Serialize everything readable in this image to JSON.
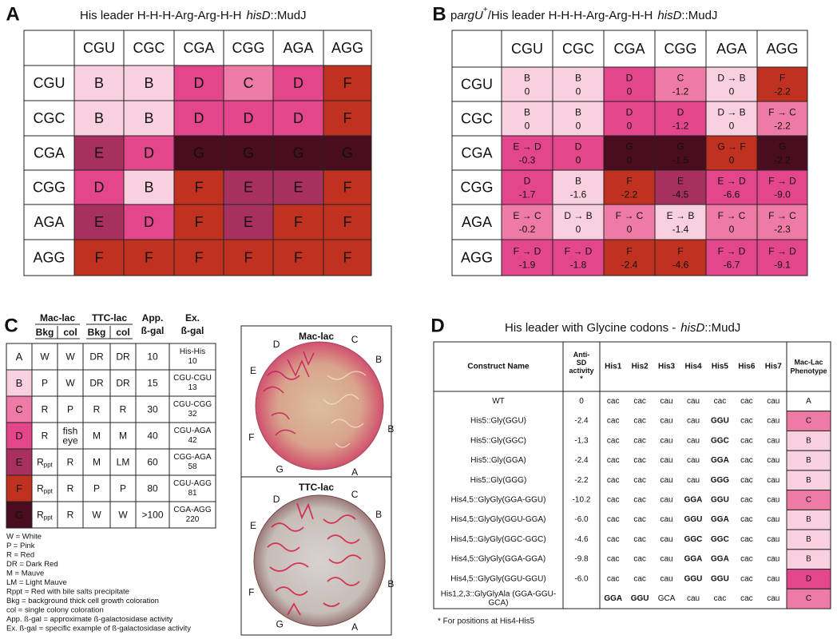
{
  "phenotype_colors": {
    "A": {
      "fill": "#ffffff",
      "text": "#111111"
    },
    "B": {
      "fill": "#f9d0df",
      "text": "#111111"
    },
    "C": {
      "fill": "#ee7aa6",
      "text": "#111111"
    },
    "D": {
      "fill": "#e4468b",
      "text": "#ffffff"
    },
    "E": {
      "fill": "#a8305f",
      "text": "#ffffff"
    },
    "F": {
      "fill": "#c0321f",
      "text": "#ffffff"
    },
    "G": {
      "fill": "#4a0d20",
      "text": "#ffffff"
    }
  },
  "panel_a": {
    "label": "A",
    "title": {
      "prefix": "His leader H-H-H-Arg-Arg-H-H",
      "gene": "hisD",
      "suffix": "::MudJ"
    },
    "columns": [
      "CGU",
      "CGC",
      "CGA",
      "CGG",
      "AGA",
      "AGG"
    ],
    "rows": [
      {
        "codon": "CGU",
        "cells": [
          "B",
          "B",
          "D",
          "C",
          "D",
          "F"
        ]
      },
      {
        "codon": "CGC",
        "cells": [
          "B",
          "B",
          "D",
          "D",
          "D",
          "F"
        ]
      },
      {
        "codon": "CGA",
        "cells": [
          "E",
          "D",
          "G",
          "G",
          "G",
          "G"
        ]
      },
      {
        "codon": "CGG",
        "cells": [
          "D",
          "B",
          "F",
          "E",
          "E",
          "F"
        ]
      },
      {
        "codon": "AGA",
        "cells": [
          "E",
          "D",
          "F",
          "E",
          "F",
          "F"
        ]
      },
      {
        "codon": "AGG",
        "cells": [
          "F",
          "F",
          "F",
          "F",
          "F",
          "F"
        ]
      }
    ]
  },
  "panel_b": {
    "label": "B",
    "title": {
      "p": "p",
      "gene": "argU",
      "sup": "+",
      "rest": "/His leader H-H-H-Arg-Arg-H-H",
      "gene2": "hisD",
      "suffix": "::MudJ"
    },
    "columns": [
      "CGU",
      "CGC",
      "CGA",
      "CGG",
      "AGA",
      "AGG"
    ],
    "rows": [
      {
        "codon": "CGU",
        "cells": [
          {
            "phenotype": "B",
            "anti_sd": "0"
          },
          {
            "phenotype": "B",
            "anti_sd": "0"
          },
          {
            "phenotype": "D",
            "anti_sd": "0"
          },
          {
            "phenotype": "C",
            "anti_sd": "-1.2"
          },
          {
            "phenotype": "D → B",
            "anti_sd": "0"
          },
          {
            "phenotype": "F",
            "anti_sd": "-2.2"
          }
        ]
      },
      {
        "codon": "CGC",
        "cells": [
          {
            "phenotype": "B",
            "anti_sd": "0"
          },
          {
            "phenotype": "B",
            "anti_sd": "0"
          },
          {
            "phenotype": "D",
            "anti_sd": "0"
          },
          {
            "phenotype": "D",
            "anti_sd": "-1.2"
          },
          {
            "phenotype": "D → B",
            "anti_sd": "0"
          },
          {
            "phenotype": "F → C",
            "anti_sd": "-2.2"
          }
        ]
      },
      {
        "codon": "CGA",
        "cells": [
          {
            "phenotype": "E → D",
            "anti_sd": "-0.3"
          },
          {
            "phenotype": "D",
            "anti_sd": "0"
          },
          {
            "phenotype": "G",
            "anti_sd": "0"
          },
          {
            "phenotype": "G",
            "anti_sd": "-1.5"
          },
          {
            "phenotype": "G → F",
            "anti_sd": "0"
          },
          {
            "phenotype": "G",
            "anti_sd": "-2.2"
          }
        ]
      },
      {
        "codon": "CGG",
        "cells": [
          {
            "phenotype": "D",
            "anti_sd": "-1.7"
          },
          {
            "phenotype": "B",
            "anti_sd": "-1.6"
          },
          {
            "phenotype": "F",
            "anti_sd": "-2.2"
          },
          {
            "phenotype": "E",
            "anti_sd": "-4.5"
          },
          {
            "phenotype": "E → D",
            "anti_sd": "-6.6"
          },
          {
            "phenotype": "F → D",
            "anti_sd": "-9.0"
          }
        ]
      },
      {
        "codon": "AGA",
        "cells": [
          {
            "phenotype": "E → C",
            "anti_sd": "-0.2"
          },
          {
            "phenotype": "D → B",
            "anti_sd": "0"
          },
          {
            "phenotype": "F → C",
            "anti_sd": "0"
          },
          {
            "phenotype": "E → B",
            "anti_sd": "-1.4"
          },
          {
            "phenotype": "F → C",
            "anti_sd": "0"
          },
          {
            "phenotype": "F → C",
            "anti_sd": "-2.3"
          }
        ]
      },
      {
        "codon": "AGG",
        "cells": [
          {
            "phenotype": "F → D",
            "anti_sd": "-1.9"
          },
          {
            "phenotype": "F → D",
            "anti_sd": "-1.8"
          },
          {
            "phenotype": "F",
            "anti_sd": "-2.4"
          },
          {
            "phenotype": "F",
            "anti_sd": "-4.6"
          },
          {
            "phenotype": "F → D",
            "anti_sd": "-6.7"
          },
          {
            "phenotype": "F → D",
            "anti_sd": "-9.1"
          }
        ]
      }
    ]
  },
  "panel_c": {
    "label": "C",
    "headers": {
      "mac_lac": "Mac-lac",
      "ttc_lac": "TTC-lac",
      "app": [
        "App.",
        "ß-gal"
      ],
      "ex": [
        "Ex.",
        "ß-gal"
      ],
      "sub": [
        "Bkg",
        "col",
        "Bkg",
        "col"
      ]
    },
    "rows": [
      {
        "phenotype": "A",
        "cells": [
          "W",
          "W",
          "DR",
          "DR",
          "10",
          [
            "His-His",
            "10"
          ]
        ]
      },
      {
        "phenotype": "B",
        "cells": [
          "P",
          "W",
          "DR",
          "DR",
          "15",
          [
            "CGU-CGU",
            "13"
          ]
        ]
      },
      {
        "phenotype": "C",
        "cells": [
          "R",
          "P",
          "R",
          "R",
          "30",
          [
            "CGU-CGG",
            "32"
          ]
        ]
      },
      {
        "phenotype": "D",
        "cells": [
          "R",
          [
            "fish",
            "eye"
          ],
          "M",
          "M",
          "40",
          [
            "CGU-AGA",
            "42"
          ]
        ]
      },
      {
        "phenotype": "E",
        "cells": [
          {
            "text": "R",
            "sub": "ppt"
          },
          "R",
          "M",
          "LM",
          "60",
          [
            "CGG-AGA",
            "58"
          ]
        ]
      },
      {
        "phenotype": "F",
        "cells": [
          {
            "text": "R",
            "sub": "ppt"
          },
          "R",
          "P",
          "P",
          "80",
          [
            "CGU-AGG",
            "81"
          ]
        ]
      },
      {
        "phenotype": "G",
        "cells": [
          {
            "text": "R",
            "sub": "ppt"
          },
          "R",
          "W",
          "W",
          ">100",
          [
            "CGA-AGG",
            "220"
          ]
        ]
      }
    ],
    "legend": [
      "W = White",
      "P = Pink",
      "R = Red",
      "DR = Dark Red",
      "M = Mauve",
      "LM = Light Mauve",
      "Rppt = Red with bile salts precipitate",
      "Bkg = background thick cell growth coloration",
      "col = single colony coloration",
      "App. ß-gal = approximate ß-galactosidase activity",
      "Ex. ß-gal = specific example of ß-galactosidase activity"
    ],
    "plates": [
      {
        "title": "Mac-lac",
        "labels": [
          "D",
          "C",
          "B",
          "B",
          "A",
          "G",
          "F",
          "E"
        ]
      },
      {
        "title": "TTC-lac",
        "labels": [
          "D",
          "C",
          "B",
          "B",
          "A",
          "G",
          "F",
          "E"
        ]
      }
    ]
  },
  "panel_d": {
    "label": "D",
    "title": {
      "prefix": "His leader with Glycine codons -",
      "gene": "hisD",
      "suffix": "::MudJ"
    },
    "columns": {
      "name": "Construct Name",
      "anti_sd": [
        "Anti-",
        "SD",
        "activity",
        "*"
      ],
      "his": [
        "His1",
        "His2",
        "His3",
        "His4",
        "His5",
        "His6",
        "His7"
      ],
      "phenotype": [
        "Mac-Lac",
        "Phenotype"
      ]
    },
    "rows": [
      {
        "name": "WT",
        "anti_sd": "0",
        "codons": [
          "cac",
          "cac",
          "cau",
          "cau",
          "cac",
          "cac",
          "cau"
        ],
        "bold": [],
        "phenotype": "A"
      },
      {
        "name": "His5::Gly(GGU)",
        "anti_sd": "-2.4",
        "codons": [
          "cac",
          "cac",
          "cau",
          "cau",
          "GGU",
          "cac",
          "cau"
        ],
        "bold": [
          4
        ],
        "phenotype": "C"
      },
      {
        "name": "His5::Gly(GGC)",
        "anti_sd": "-1.3",
        "codons": [
          "cac",
          "cac",
          "cau",
          "cau",
          "GGC",
          "cac",
          "cau"
        ],
        "bold": [
          4
        ],
        "phenotype": "B"
      },
      {
        "name": "His5::Gly(GGA)",
        "anti_sd": "-2.4",
        "codons": [
          "cac",
          "cac",
          "cau",
          "cau",
          "GGA",
          "cac",
          "cau"
        ],
        "bold": [
          4
        ],
        "phenotype": "B"
      },
      {
        "name": "His5::Gly(GGG)",
        "anti_sd": "-2.2",
        "codons": [
          "cac",
          "cac",
          "cau",
          "cau",
          "GGG",
          "cac",
          "cau"
        ],
        "bold": [
          4
        ],
        "phenotype": "B"
      },
      {
        "name": "His4,5::GlyGly(GGA-GGU)",
        "anti_sd": "-10.2",
        "codons": [
          "cac",
          "cac",
          "cau",
          "GGA",
          "GGU",
          "cac",
          "cau"
        ],
        "bold": [
          3,
          4
        ],
        "phenotype": "C"
      },
      {
        "name": "His4,5::GlyGly(GGU-GGA)",
        "anti_sd": "-6.0",
        "codons": [
          "cac",
          "cac",
          "cau",
          "GGU",
          "GGA",
          "cac",
          "cau"
        ],
        "bold": [
          3,
          4
        ],
        "phenotype": "B"
      },
      {
        "name": "His4,5::GlyGly(GGC-GGC)",
        "anti_sd": "-4.6",
        "codons": [
          "cac",
          "cac",
          "cau",
          "GGC",
          "GGC",
          "cac",
          "cau"
        ],
        "bold": [
          3,
          4
        ],
        "phenotype": "B"
      },
      {
        "name": "His4,5::GlyGly(GGA-GGA)",
        "anti_sd": "-9.8",
        "codons": [
          "cac",
          "cac",
          "cau",
          "GGA",
          "GGA",
          "cac",
          "cau"
        ],
        "bold": [
          3,
          4
        ],
        "phenotype": "B"
      },
      {
        "name": "His4,5::GlyGly(GGU-GGU)",
        "anti_sd": "-6.0",
        "codons": [
          "cac",
          "cac",
          "cau",
          "GGU",
          "GGU",
          "cac",
          "cau"
        ],
        "bold": [
          3,
          4
        ],
        "phenotype": "D"
      },
      {
        "name": [
          "His1,2,3::GlyGlyAla (GGA-GGU-",
          "GCA)"
        ],
        "anti_sd": null,
        "codons": [
          "GGA",
          "GGU",
          "GCA",
          "cau",
          "cac",
          "cac",
          "cau"
        ],
        "bold": [
          0,
          1
        ],
        "phenotype": "C"
      }
    ],
    "footnote": "* For positions at His4-His5"
  }
}
